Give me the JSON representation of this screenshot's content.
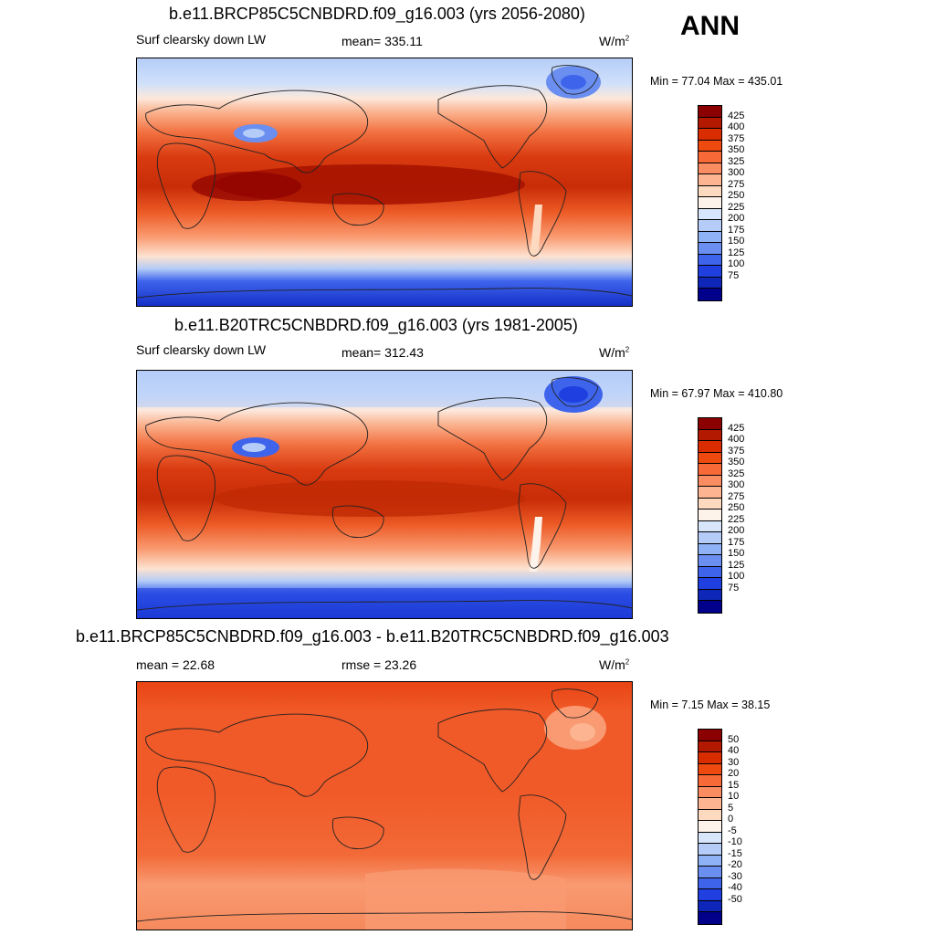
{
  "season": "ANN",
  "panels": [
    {
      "title": "b.e11.BRCP85C5CNBDRD.f09_g16.003 (yrs 2056-2080)",
      "left_label": "Surf clearsky down LW",
      "center_label": "mean= 335.11",
      "units": "W/m",
      "units_sup": "2",
      "minmax": "Min =  77.04 Max = 435.01"
    },
    {
      "title": "b.e11.B20TRC5CNBDRD.f09_g16.003 (yrs 1981-2005)",
      "left_label": "Surf clearsky down LW",
      "center_label": "mean= 312.43",
      "units": "W/m",
      "units_sup": "2",
      "minmax": "Min =  67.97 Max = 410.80"
    },
    {
      "title": "b.e11.BRCP85C5CNBDRD.f09_g16.003 - b.e11.B20TRC5CNBDRD.f09_g16.003",
      "left_label": "mean =  22.68",
      "center_label": "rmse =  23.26",
      "units": "W/m",
      "units_sup": "2",
      "minmax": "Min =   7.15 Max =  38.15"
    }
  ],
  "colorbars": {
    "absolute": {
      "labels": [
        "425",
        "400",
        "375",
        "350",
        "325",
        "300",
        "275",
        "250",
        "225",
        "200",
        "175",
        "150",
        "125",
        "100",
        "75"
      ],
      "colors": [
        "#8b0000",
        "#b31800",
        "#d92d00",
        "#ee4a10",
        "#f76a38",
        "#fa8c62",
        "#fcb491",
        "#fdd9c0",
        "#fdf3ea",
        "#d8e6fb",
        "#b4ccf7",
        "#8fb1f5",
        "#6a8ff0",
        "#3f64ec",
        "#1f3fe0",
        "#0f27b8",
        "#00008b"
      ]
    },
    "difference": {
      "labels": [
        "50",
        "40",
        "30",
        "20",
        "15",
        "10",
        "5",
        "0",
        "-5",
        "-10",
        "-15",
        "-20",
        "-30",
        "-40",
        "-50"
      ],
      "colors": [
        "#8b0000",
        "#b31800",
        "#d92d00",
        "#ee4a10",
        "#f76a38",
        "#fa8c62",
        "#fcb491",
        "#fdd9c0",
        "#fdf3ea",
        "#d8e6fb",
        "#b4ccf7",
        "#8fb1f5",
        "#6a8ff0",
        "#3f64ec",
        "#1f3fe0",
        "#0f27b8",
        "#00008b"
      ]
    }
  }
}
